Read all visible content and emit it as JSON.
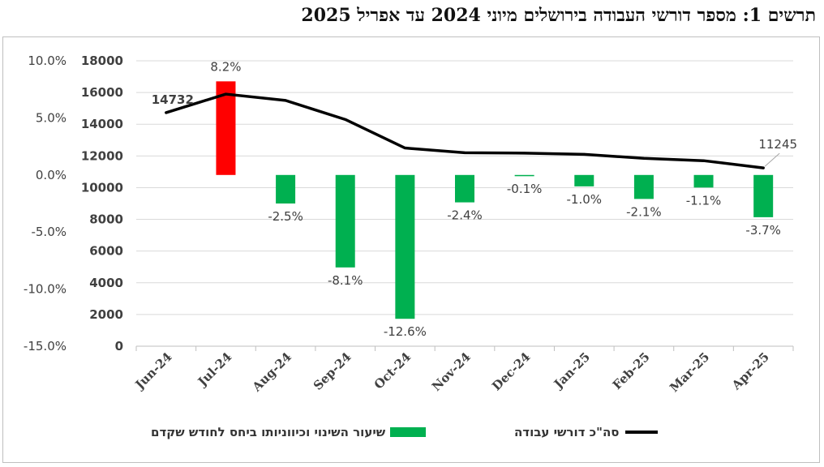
{
  "title": "תרשים 1: מספר דורשי העבודה בירושלים מיוני 2024 עד אפריל 2025",
  "colors": {
    "positive": "#ff0000",
    "negative": "#00b050",
    "line": "#000000",
    "grid": "#d9d9d9"
  },
  "chart_data": {
    "type": "bar+line",
    "categories": [
      "Jun-24",
      "Jul-24",
      "Aug-24",
      "Sep-24",
      "Oct-24",
      "Nov-24",
      "Dec-24",
      "Jan-25",
      "Feb-25",
      "Mar-25",
      "Apr-25"
    ],
    "series": [
      {
        "name": "שיעור השינוי וכיווניותו ביחס לחודש שקדם",
        "type": "bar",
        "axis": "left",
        "values": [
          null,
          8.2,
          -2.5,
          -8.1,
          -12.6,
          -2.4,
          -0.1,
          -1.0,
          -2.1,
          -1.1,
          -3.7
        ],
        "labels": [
          "",
          "8.2%",
          "-2.5%",
          "-8.1%",
          "-12.6%",
          "-2.4%",
          "-0.1%",
          "-1.0%",
          "-2.1%",
          "-1.1%",
          "-3.7%"
        ]
      },
      {
        "name": "סה\"כ דורשי עבודה",
        "type": "line",
        "axis": "right",
        "values": [
          14732,
          15900,
          15500,
          14300,
          12500,
          12200,
          12180,
          12100,
          11850,
          11700,
          11245
        ],
        "labels": [
          "14732",
          "",
          "",
          "",
          "",
          "",
          "",
          "",
          "",
          "",
          "11245"
        ]
      }
    ],
    "left_axis": {
      "ticks": [
        "10.0%",
        "5.0%",
        "0.0%",
        "-5.0%",
        "-10.0%",
        "-15.0%"
      ],
      "values": [
        10,
        5,
        0,
        -5,
        -10,
        -15
      ],
      "range": [
        -15,
        10
      ]
    },
    "right_axis": {
      "ticks": [
        "18000",
        "16000",
        "14000",
        "12000",
        "10000",
        "8000",
        "6000",
        "4000",
        "2000",
        "0"
      ],
      "values": [
        18000,
        16000,
        14000,
        12000,
        10000,
        8000,
        6000,
        4000,
        2000,
        0
      ],
      "range": [
        0,
        18000
      ]
    },
    "grid": true,
    "legend": "bottom"
  },
  "legend": {
    "bar_label": "שיעור השינוי וכיווניותו ביחס לחודש שקדם",
    "line_label": "סה\"כ דורשי עבודה"
  }
}
